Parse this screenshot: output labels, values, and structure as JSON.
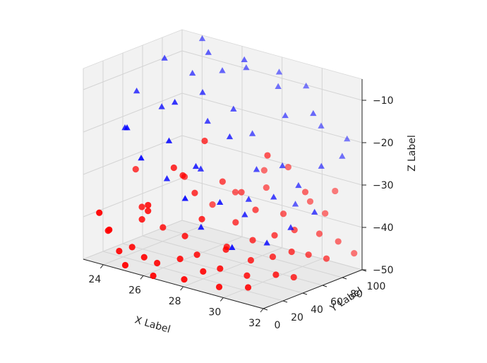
{
  "chart_data": {
    "type": "scatter",
    "projection": "3d",
    "title": "",
    "xlabel": "X Label",
    "ylabel": "Y Label",
    "zlabel": "Z Label",
    "xlim": [
      23,
      32
    ],
    "ylim": [
      0,
      100
    ],
    "zlim": [
      -50,
      -5
    ],
    "xticks": [
      "24",
      "26",
      "28",
      "30",
      "32"
    ],
    "yticks": [
      "0",
      "20",
      "40",
      "60",
      "80",
      "100"
    ],
    "zticks": [
      "−10",
      "−20",
      "−30",
      "−40",
      "−50"
    ],
    "grid": true,
    "pane_color": "#f2f2f2",
    "series": [
      {
        "marker": "circle",
        "color": "#ff0000",
        "points": [
          [
            23.2,
            49,
            -33
          ],
          [
            23.5,
            15,
            -44
          ],
          [
            23.8,
            0,
            -38
          ],
          [
            24.1,
            4,
            -42
          ],
          [
            24.4,
            8,
            -47
          ],
          [
            24.6,
            27,
            -41
          ],
          [
            24.8,
            13,
            -46
          ],
          [
            25.0,
            2,
            -49
          ],
          [
            25.1,
            23,
            -38
          ],
          [
            25.3,
            19,
            -36
          ],
          [
            25.5,
            30,
            -42
          ],
          [
            25.6,
            9,
            -47
          ],
          [
            25.8,
            35,
            -28
          ],
          [
            26.0,
            40,
            -30
          ],
          [
            26.1,
            12,
            -48
          ],
          [
            26.3,
            4,
            -50
          ],
          [
            26.4,
            44,
            -34
          ],
          [
            26.6,
            50,
            -22
          ],
          [
            26.8,
            26,
            -42
          ],
          [
            27.0,
            60,
            -32
          ],
          [
            27.1,
            15,
            -46
          ],
          [
            27.3,
            33,
            -38
          ],
          [
            27.4,
            71,
            -35
          ],
          [
            27.6,
            22,
            -45
          ],
          [
            27.8,
            5,
            -49
          ],
          [
            27.9,
            55,
            -40
          ],
          [
            28.1,
            82,
            -34
          ],
          [
            28.2,
            40,
            -44
          ],
          [
            28.4,
            12,
            -47
          ],
          [
            28.5,
            63,
            -37
          ],
          [
            28.7,
            29,
            -43
          ],
          [
            28.8,
            90,
            -29
          ],
          [
            29.0,
            17,
            -46
          ],
          [
            29.1,
            48,
            -42
          ],
          [
            29.3,
            75,
            -38
          ],
          [
            29.4,
            8,
            -49
          ],
          [
            29.6,
            36,
            -45
          ],
          [
            29.7,
            58,
            -41
          ],
          [
            29.9,
            85,
            -33
          ],
          [
            30.0,
            24,
            -47
          ],
          [
            30.2,
            68,
            -40
          ],
          [
            30.3,
            44,
            -44
          ],
          [
            30.5,
            93,
            -38
          ],
          [
            30.6,
            13,
            -48
          ],
          [
            30.8,
            53,
            -43
          ],
          [
            30.9,
            79,
            -41
          ],
          [
            31.1,
            31,
            -46
          ],
          [
            31.2,
            62,
            -44
          ],
          [
            31.4,
            88,
            -43
          ],
          [
            31.5,
            41,
            -47
          ],
          [
            31.7,
            70,
            -45
          ],
          [
            31.8,
            96,
            -46
          ],
          [
            26.9,
            75,
            -36
          ],
          [
            27.7,
            88,
            -31
          ],
          [
            28.9,
            67,
            -24
          ],
          [
            29.8,
            92,
            -36
          ],
          [
            30.7,
            99,
            -33
          ],
          [
            25.2,
            58,
            -33
          ],
          [
            24.3,
            33,
            -39
          ],
          [
            26.2,
            66,
            -39
          ]
        ]
      },
      {
        "marker": "triangle",
        "color": "#0000ff",
        "points": [
          [
            23.1,
            52,
            -15
          ],
          [
            23.6,
            30,
            -21
          ],
          [
            24.0,
            62,
            -7
          ],
          [
            24.3,
            18,
            -19
          ],
          [
            24.7,
            45,
            -16
          ],
          [
            25.0,
            70,
            -10
          ],
          [
            25.4,
            10,
            -24
          ],
          [
            25.7,
            38,
            -13
          ],
          [
            26.0,
            80,
            -9
          ],
          [
            26.2,
            22,
            -20
          ],
          [
            26.5,
            55,
            -18
          ],
          [
            26.8,
            88,
            -8
          ],
          [
            27.0,
            33,
            -26
          ],
          [
            27.3,
            65,
            -15
          ],
          [
            27.5,
            12,
            -31
          ],
          [
            27.8,
            74,
            -21
          ],
          [
            28.0,
            47,
            -19
          ],
          [
            28.2,
            92,
            -11
          ],
          [
            28.5,
            27,
            -32
          ],
          [
            28.7,
            60,
            -27
          ],
          [
            29.0,
            83,
            -16
          ],
          [
            29.2,
            38,
            -35
          ],
          [
            29.5,
            70,
            -26
          ],
          [
            29.7,
            15,
            -40
          ],
          [
            30.0,
            51,
            -31
          ],
          [
            30.2,
            95,
            -18
          ],
          [
            30.5,
            66,
            -29
          ],
          [
            30.7,
            30,
            -39
          ],
          [
            31.0,
            79,
            -25
          ],
          [
            31.2,
            44,
            -36
          ],
          [
            31.5,
            90,
            -23
          ],
          [
            31.7,
            58,
            -33
          ],
          [
            26.1,
            58,
            -12
          ],
          [
            27.1,
            80,
            -5
          ],
          [
            28.1,
            95,
            -8
          ],
          [
            29.3,
            98,
            -10
          ],
          [
            30.3,
            85,
            -14
          ],
          [
            25.5,
            76,
            -5
          ],
          [
            24.6,
            88,
            -4
          ],
          [
            26.7,
            44,
            -28
          ],
          [
            27.9,
            20,
            -38
          ],
          [
            29.9,
            75,
            -35
          ],
          [
            31.3,
            99,
            -20
          ],
          [
            28.8,
            50,
            -33
          ],
          [
            25.8,
            28,
            -30
          ]
        ]
      }
    ]
  }
}
